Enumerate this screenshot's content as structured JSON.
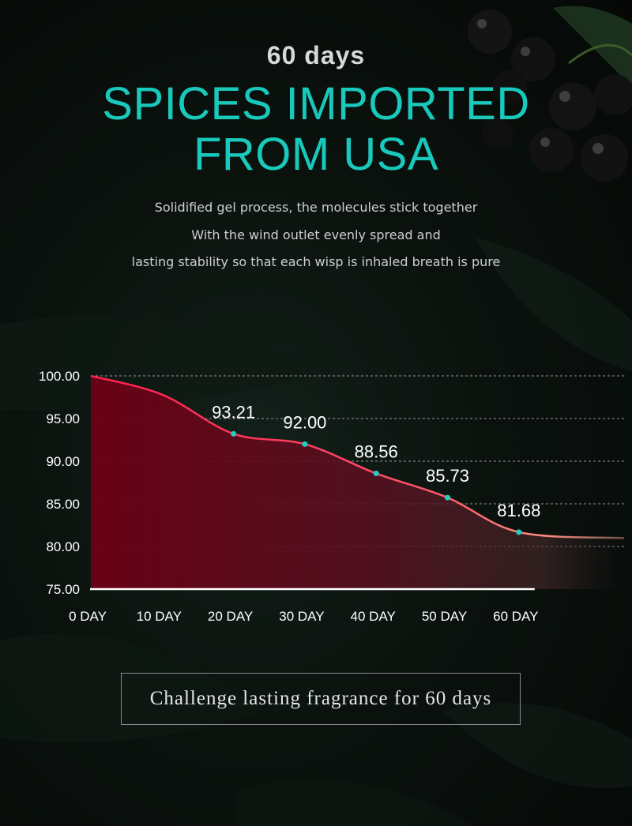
{
  "header": {
    "subtitle": "60 days",
    "title_line1": "SPICES IMPORTED",
    "title_line2": "FROM USA"
  },
  "description": {
    "lines": [
      "Solidified gel process, the molecules stick together",
      "With the wind outlet evenly spread and",
      "lasting stability so that each wisp is inhaled breath is pure"
    ]
  },
  "banner": {
    "text": "Challenge lasting fragrance for 60 days"
  },
  "chart_data": {
    "type": "area",
    "categories": [
      "0 DAY",
      "10 DAY",
      "20 DAY",
      "30 DAY",
      "40 DAY",
      "50 DAY",
      "60 DAY"
    ],
    "x": [
      0,
      10,
      20,
      30,
      40,
      50,
      60
    ],
    "values": [
      100.0,
      97.8,
      93.21,
      92.0,
      88.56,
      85.73,
      81.68
    ],
    "data_labels": [
      null,
      null,
      "93.21",
      "92.00",
      "88.56",
      "85.73",
      "81.68"
    ],
    "ylim": [
      75,
      100
    ],
    "yticks": [
      "75.00",
      "80.00",
      "85.00",
      "90.00",
      "95.00",
      "100.00"
    ],
    "title": "",
    "xlabel": "",
    "ylabel": "",
    "grid": true,
    "colors": {
      "line": "#ff2a55",
      "fill_start": "#7a0018",
      "marker": "#1fd0c2",
      "text": "#ffffff"
    }
  }
}
